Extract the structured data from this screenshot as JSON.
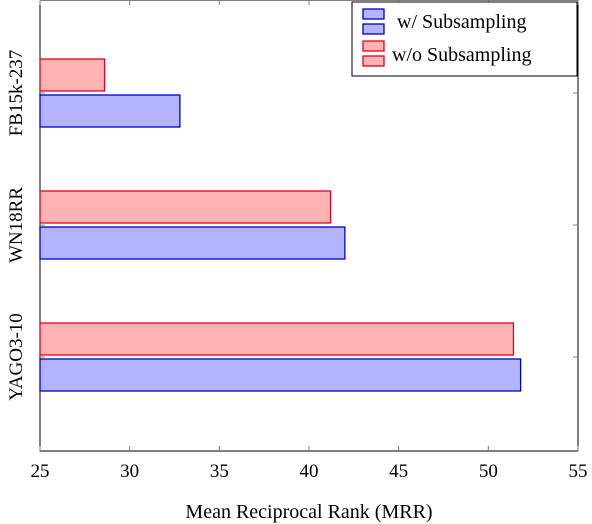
{
  "chart_data": {
    "type": "bar",
    "orientation": "horizontal",
    "categories": [
      "YAGO3-10",
      "WN18RR",
      "FB15k-237"
    ],
    "series": [
      {
        "name": "w/ Subsampling",
        "values": [
          51.8,
          42.0,
          32.8
        ],
        "fill": "#b3b3ff",
        "stroke": "#0000cc"
      },
      {
        "name": "w/o Subsampling",
        "values": [
          51.4,
          41.2,
          28.6
        ],
        "fill": "#ffb3b3",
        "stroke": "#e8001a"
      }
    ],
    "xlabel": "Mean Reciprocal Rank (MRR)",
    "ylabel": "",
    "xlim": [
      25,
      55
    ],
    "xticks": [
      "25",
      "30",
      "35",
      "40",
      "45",
      "50",
      "55"
    ],
    "legend": "top-right",
    "grid": false
  }
}
